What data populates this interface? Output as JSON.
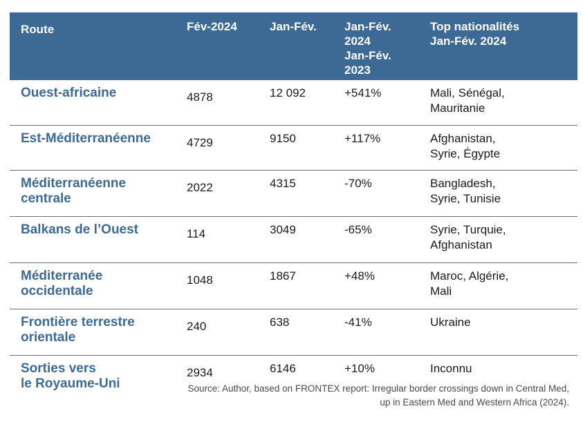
{
  "headers": {
    "route": "Route",
    "feb2024": "Fév-2024",
    "janfeb": "Jan-Fév.",
    "change": [
      "Jan-Fév.",
      "2024",
      "Jan-Fév.",
      "2023"
    ],
    "top": [
      "Top nationalités",
      "Jan-Fév. 2024"
    ]
  },
  "rows": [
    {
      "route": [
        "Ouest-africaine"
      ],
      "feb2024": "4878",
      "janfeb": "12 092",
      "change": "+541%",
      "top": [
        "Mali, Sénégal,",
        "Mauritanie"
      ]
    },
    {
      "route": [
        "Est-Méditerranéenne"
      ],
      "feb2024": "4729",
      "janfeb": "9150",
      "change": "+117%",
      "top": [
        "Afghanistan,",
        "Syrie, Égypte"
      ]
    },
    {
      "route": [
        "Méditerranéenne",
        "centrale"
      ],
      "feb2024": "2022",
      "janfeb": "4315",
      "change": "-70%",
      "top": [
        "Bangladesh,",
        "Syrie, Tunisie"
      ]
    },
    {
      "route": [
        "Balkans de l’Ouest"
      ],
      "feb2024": "114",
      "janfeb": "3049",
      "change": "-65%",
      "top": [
        "Syrie, Turquie,",
        "Afghanistan"
      ]
    },
    {
      "route": [
        "Méditerranée",
        "occidentale"
      ],
      "feb2024": "1048",
      "janfeb": "1867",
      "change": "+48%",
      "top": [
        "Maroc, Algérie,",
        "Mali"
      ]
    },
    {
      "route": [
        "Frontière terrestre",
        "orientale"
      ],
      "feb2024": "240",
      "janfeb": "638",
      "change": "-41%",
      "top": [
        "Ukraine"
      ]
    },
    {
      "route": [
        "Sorties vers",
        "le Royaume-Uni"
      ],
      "feb2024": "2934",
      "janfeb": "6146",
      "change": "+10%",
      "top": [
        "Inconnu"
      ]
    }
  ],
  "source": [
    "Source: Author, based on FRONTEX report: Irregular border crossings down in Central Med,",
    "up in Eastern Med and Western Africa (2024)."
  ],
  "colors": {
    "header_bg": "#3d6a94",
    "route_text": "#3d6a94",
    "row_divider": "#6b6b6b"
  }
}
